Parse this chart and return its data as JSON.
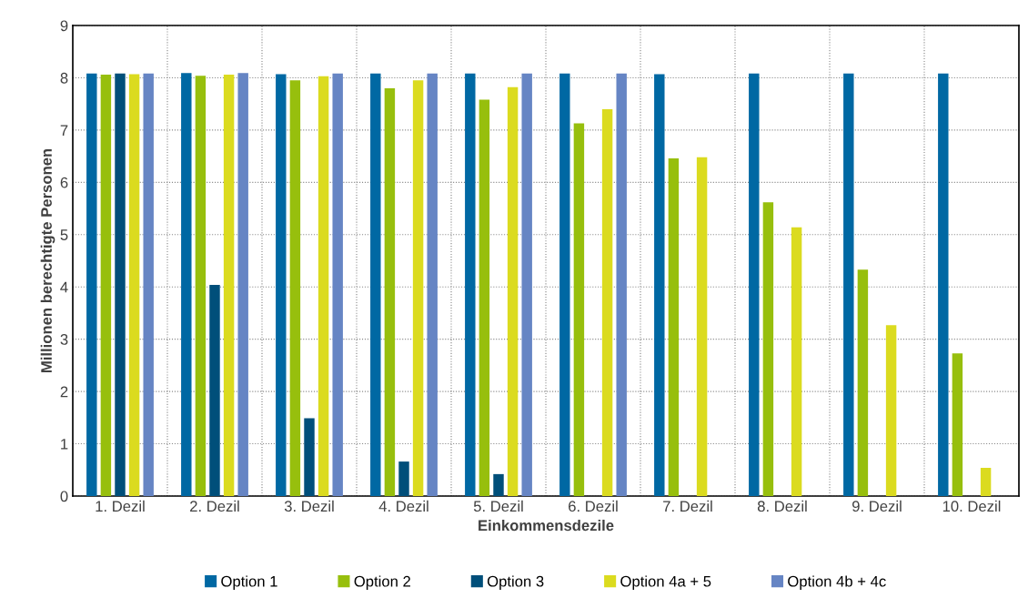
{
  "chart_data": {
    "type": "bar",
    "xlabel": "Einkommensdezile",
    "ylabel": "Millionen berechtigte Personen",
    "categories": [
      "1. Dezil",
      "2. Dezil",
      "3. Dezil",
      "4. Dezil",
      "5. Dezil",
      "6. Dezil",
      "7. Dezil",
      "8. Dezil",
      "9. Dezil",
      "10. Dezil"
    ],
    "series": [
      {
        "name": "Option 1",
        "color": "#0068a3",
        "values": [
          8.08,
          8.09,
          8.07,
          8.08,
          8.08,
          8.08,
          8.07,
          8.08,
          8.08,
          8.08
        ]
      },
      {
        "name": "Option 2",
        "color": "#97bf0d",
        "values": [
          8.06,
          8.04,
          7.95,
          7.8,
          7.58,
          7.13,
          6.46,
          5.62,
          4.33,
          2.73
        ]
      },
      {
        "name": "Option 3",
        "color": "#004f7a",
        "values": [
          8.08,
          4.04,
          1.49,
          0.66,
          0.42,
          null,
          null,
          null,
          null,
          null
        ]
      },
      {
        "name": "Option 4a + 5",
        "color": "#dbdb1f",
        "values": [
          8.07,
          8.06,
          8.03,
          7.95,
          7.82,
          7.4,
          6.48,
          5.14,
          3.27,
          0.54
        ]
      },
      {
        "name": "Option 4b + 4c",
        "color": "#6685c4",
        "values": [
          8.08,
          8.09,
          8.08,
          8.08,
          8.08,
          8.08,
          null,
          null,
          null,
          null
        ]
      }
    ],
    "ylim": [
      0,
      9
    ],
    "yticks": [
      0,
      1,
      2,
      3,
      4,
      5,
      6,
      7,
      8,
      9
    ],
    "grid": true,
    "legend": "bottom"
  }
}
